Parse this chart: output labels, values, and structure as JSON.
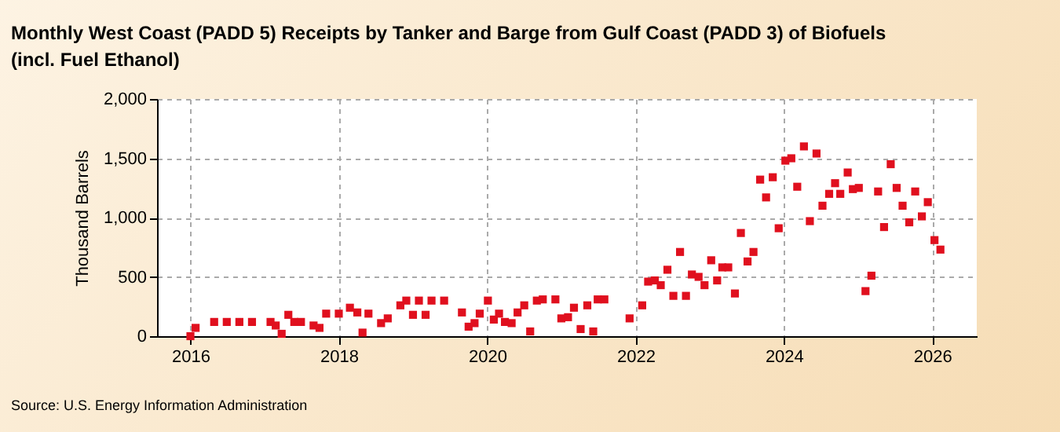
{
  "chart_data": {
    "type": "scatter",
    "title": "Monthly West Coast (PADD 5) Receipts by Tanker and Barge from Gulf Coast (PADD 3) of Biofuels (incl. Fuel Ethanol)",
    "ylabel": "Thousand Barrels",
    "annotations": [
      "Source: U.S. Energy Information Administration"
    ],
    "x": [
      2016.0,
      2016.07,
      2016.32,
      2016.49,
      2016.66,
      2016.83,
      2017.08,
      2017.15,
      2017.23,
      2017.32,
      2017.4,
      2017.49,
      2017.66,
      2017.74,
      2017.83,
      2018.0,
      2018.15,
      2018.25,
      2018.32,
      2018.4,
      2018.57,
      2018.66,
      2018.83,
      2018.91,
      2019.0,
      2019.08,
      2019.17,
      2019.25,
      2019.42,
      2019.66,
      2019.75,
      2019.83,
      2019.9,
      2020.01,
      2020.09,
      2020.16,
      2020.24,
      2020.33,
      2020.41,
      2020.5,
      2020.58,
      2020.67,
      2020.75,
      2020.92,
      2021.0,
      2021.09,
      2021.17,
      2021.26,
      2021.35,
      2021.43,
      2021.49,
      2021.58,
      2021.92,
      2022.09,
      2022.17,
      2022.26,
      2022.34,
      2022.43,
      2022.51,
      2022.6,
      2022.68,
      2022.76,
      2022.85,
      2022.93,
      2023.02,
      2023.1,
      2023.17,
      2023.25,
      2023.34,
      2023.42,
      2023.51,
      2023.59,
      2023.68,
      2023.76,
      2023.85,
      2023.93,
      2024.02,
      2024.1,
      2024.18,
      2024.27,
      2024.35,
      2024.44,
      2024.52,
      2024.61,
      2024.69,
      2024.76,
      2024.86,
      2024.93,
      2025.01,
      2025.1,
      2025.18,
      2025.27,
      2025.35,
      2025.44,
      2025.52,
      2025.6,
      2025.69,
      2025.77,
      2025.86,
      2025.94,
      2026.03,
      2026.11
    ],
    "series": [
      {
        "color": "#e0101e",
        "values": [
          0,
          70,
          120,
          120,
          120,
          120,
          120,
          90,
          20,
          180,
          120,
          120,
          90,
          70,
          190,
          190,
          240,
          200,
          30,
          190,
          110,
          150,
          260,
          300,
          180,
          300,
          180,
          300,
          300,
          200,
          80,
          110,
          190,
          300,
          140,
          190,
          120,
          110,
          200,
          260,
          40,
          300,
          310,
          310,
          150,
          160,
          240,
          60,
          260,
          40,
          310,
          310,
          150,
          260,
          460,
          470,
          430,
          560,
          340,
          710,
          340,
          520,
          500,
          430,
          640,
          470,
          580,
          580,
          360,
          870,
          630,
          710,
          1320,
          1170,
          1340,
          910,
          1480,
          1500,
          1260,
          1600,
          970,
          1540,
          1100,
          1200,
          1290,
          1200,
          1380,
          1240,
          1250,
          380,
          510,
          1220,
          920,
          1450,
          1250,
          1100,
          960,
          1220,
          1010,
          1130,
          810,
          730
        ]
      }
    ],
    "xlim": [
      2015.55,
      2026.6
    ],
    "xticks": [
      2016,
      2018,
      2020,
      2022,
      2024,
      2026
    ],
    "ylim": [
      0,
      2000
    ],
    "yticks": [
      {
        "value": 0,
        "label": "0"
      },
      {
        "value": 500,
        "label": "500"
      },
      {
        "value": 1000,
        "label": "1,000"
      },
      {
        "value": 1500,
        "label": "1,500"
      },
      {
        "value": 2000,
        "label": "2,000"
      }
    ],
    "grid": true,
    "marker": "square"
  }
}
